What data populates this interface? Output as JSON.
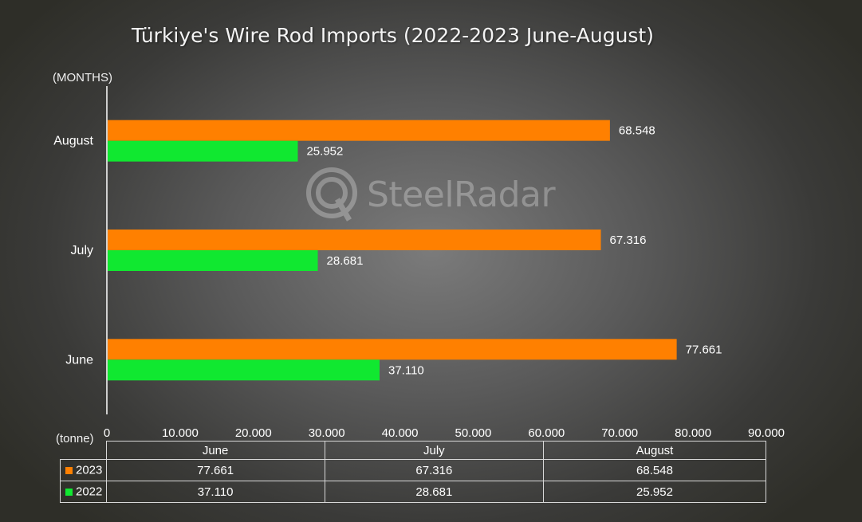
{
  "colors": {
    "s2023": "#ff8000",
    "s2022": "#10e830",
    "axis": "#ffffff"
  },
  "chart_data": {
    "type": "bar",
    "orientation": "horizontal",
    "title": "Türkiye's Wire Rod Imports (2022-2023 June-August)",
    "ylabel": "(MONTHS)",
    "xlabel": "(tonne)",
    "categories": [
      "June",
      "July",
      "August"
    ],
    "series": [
      {
        "name": "2023",
        "values": [
          77661,
          67316,
          68548
        ],
        "labels": [
          "77.661",
          "67.316",
          "68.548"
        ]
      },
      {
        "name": "2022",
        "values": [
          37110,
          28681,
          25952
        ],
        "labels": [
          "37.110",
          "28.681",
          "25.952"
        ]
      }
    ],
    "xlim": [
      0,
      90000
    ],
    "xticks": [
      0,
      10000,
      20000,
      30000,
      40000,
      50000,
      60000,
      70000,
      80000,
      90000
    ],
    "xtick_labels": [
      "0",
      "10.000",
      "20.000",
      "30.000",
      "40.000",
      "50.000",
      "60.000",
      "70.000",
      "80.000",
      "90.000"
    ],
    "grid": false,
    "legend": "data table below chart"
  },
  "watermark": {
    "text": "SteelRadar"
  },
  "table": {
    "headers": [
      "June",
      "July",
      "August"
    ],
    "rows": [
      {
        "series": "2023",
        "values": [
          "77.661",
          "67.316",
          "68.548"
        ]
      },
      {
        "series": "2022",
        "values": [
          "37.110",
          "28.681",
          "25.952"
        ]
      }
    ]
  }
}
